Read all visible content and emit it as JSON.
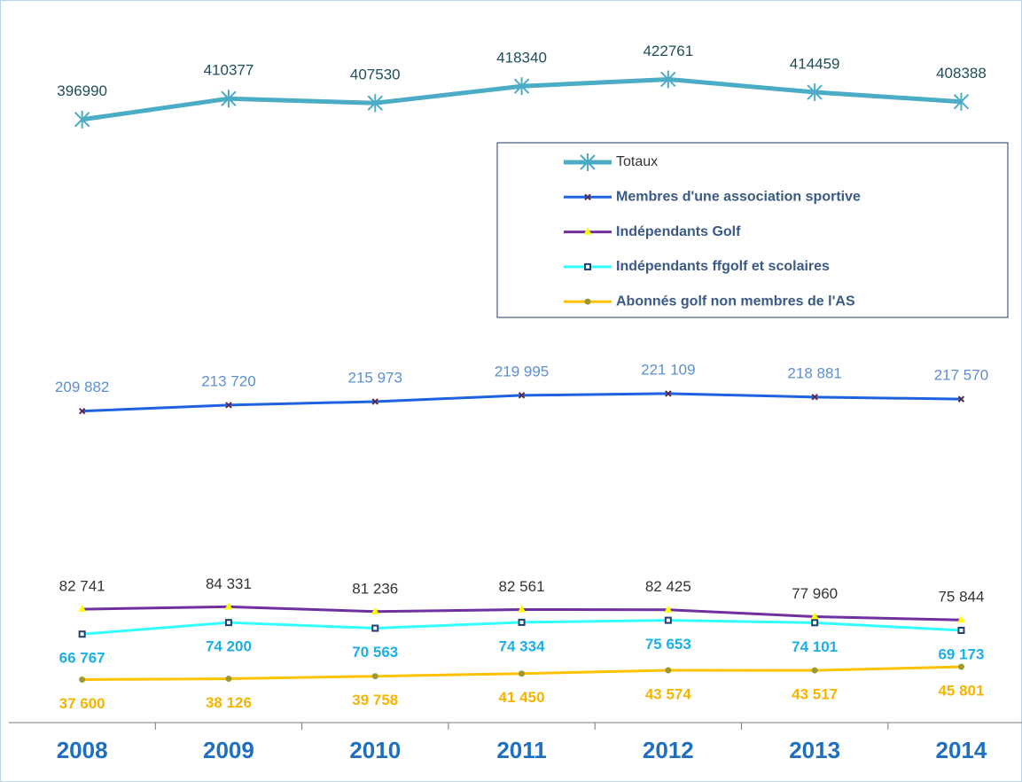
{
  "chart_data": {
    "type": "line",
    "categories": [
      "2008",
      "2009",
      "2010",
      "2011",
      "2012",
      "2013",
      "2014"
    ],
    "ylim": [
      10000,
      460000
    ],
    "series": [
      {
        "name": "Totaux",
        "color": "#4bacc6",
        "marker": "asterisk",
        "marker_color": "#4bacc6",
        "values": [
          396990,
          410377,
          407530,
          418340,
          422761,
          414459,
          408388
        ]
      },
      {
        "name": "Membres d'une association sportive",
        "color": "#1f62e0",
        "marker": "x",
        "marker_color": "#5a2a4a",
        "values": [
          209882,
          213720,
          215973,
          219995,
          221109,
          218881,
          217570
        ],
        "value_labels": [
          "209 882",
          "213 720",
          "215 973",
          "219 995",
          "221 109",
          "218 881",
          "217 570"
        ]
      },
      {
        "name": "Indépendants Golf",
        "color": "#7030a0",
        "marker": "triangle",
        "marker_color": "#ffff00",
        "values": [
          82741,
          84331,
          81236,
          82561,
          82425,
          77960,
          75844
        ],
        "value_labels": [
          "82 741",
          "84 331",
          "81 236",
          "82 561",
          "82 425",
          "77 960",
          "75 844"
        ]
      },
      {
        "name": "Indépendants ffgolf et scolaires",
        "color": "#33ffff",
        "marker": "square",
        "marker_color": "#1f3f70",
        "values": [
          66767,
          74200,
          70563,
          74334,
          75653,
          74101,
          69173
        ],
        "value_labels": [
          "66 767",
          "74 200",
          "70 563",
          "74 334",
          "75 653",
          "74 101",
          "69 173"
        ]
      },
      {
        "name": "Abonnés golf non membres de l'AS",
        "color": "#ffc000",
        "marker": "circle",
        "marker_color": "#9a9a30",
        "values": [
          37600,
          38126,
          39758,
          41450,
          43574,
          43517,
          45801
        ],
        "value_labels": [
          "37 600",
          "38 126",
          "39 758",
          "41 450",
          "43 574",
          "43 517",
          "45 801"
        ]
      }
    ]
  }
}
